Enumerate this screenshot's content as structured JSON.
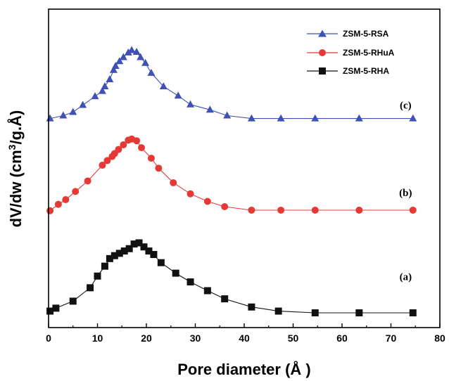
{
  "chart_data": {
    "type": "line",
    "xlabel": "Pore diameter (Å )",
    "ylabel": "dV/dw (cm³/g.Å)",
    "ylabel_parts": {
      "pre": "dV/dw (cm",
      "sup": "3",
      "post": "/g.Å)"
    },
    "xlim": [
      0,
      80
    ],
    "xticks": [
      0,
      10,
      20,
      30,
      40,
      50,
      60,
      70,
      80
    ],
    "yticks_shown": false,
    "grid": false,
    "legend_position": "top-right",
    "annotations": [
      {
        "id": "c",
        "text": "(c)",
        "x": 73,
        "y": 3.62
      },
      {
        "id": "b",
        "text": "(b)",
        "x": 73,
        "y": 2.12
      },
      {
        "id": "a",
        "text": "(a)",
        "x": 73,
        "y": 0.68
      }
    ],
    "series": [
      {
        "name": "ZSM-5-RSA",
        "color": "#3f51b5",
        "marker": "triangle",
        "x": [
          0.3,
          3,
          5,
          7,
          9.5,
          11,
          11.5,
          12.5,
          13.3,
          13.7,
          14.5,
          15.3,
          16.3,
          17,
          18,
          18.8,
          19.8,
          21,
          23.5,
          26.5,
          29,
          33,
          36.5,
          41.5,
          47.5,
          54.5,
          63.5,
          74.5
        ],
        "y": [
          3.45,
          3.5,
          3.56,
          3.68,
          3.83,
          3.92,
          4.0,
          4.12,
          4.28,
          4.35,
          4.43,
          4.5,
          4.58,
          4.62,
          4.59,
          4.5,
          4.4,
          4.23,
          4.0,
          3.84,
          3.69,
          3.6,
          3.5,
          3.45,
          3.45,
          3.45,
          3.45,
          3.45
        ]
      },
      {
        "name": "ZSM-5-RHuA",
        "color": "#e53935",
        "marker": "circle",
        "x": [
          0.3,
          2,
          3.5,
          5.5,
          8,
          11,
          12,
          13,
          13.5,
          14.3,
          15.3,
          16.3,
          17,
          18,
          19,
          21,
          22.5,
          25.5,
          29,
          32.5,
          36,
          41.5,
          47.5,
          54.5,
          63.5,
          74.5
        ],
        "y": [
          1.87,
          1.98,
          2.06,
          2.2,
          2.38,
          2.65,
          2.73,
          2.8,
          2.85,
          2.92,
          3.0,
          3.08,
          3.1,
          3.07,
          2.95,
          2.77,
          2.6,
          2.35,
          2.16,
          2.03,
          1.94,
          1.88,
          1.88,
          1.88,
          1.88,
          1.88
        ]
      },
      {
        "name": "ZSM-5-RHA",
        "color": "#111111",
        "marker": "square",
        "x": [
          0.3,
          1.5,
          5,
          8.5,
          10,
          11.5,
          12.5,
          13.5,
          14.5,
          15.5,
          16.5,
          17.5,
          18.5,
          19.5,
          20.5,
          21.5,
          23,
          26,
          29,
          32.5,
          36,
          41.5,
          47,
          54.5,
          63.5,
          74.5
        ],
        "y": [
          0.15,
          0.2,
          0.32,
          0.55,
          0.75,
          0.92,
          1.05,
          1.1,
          1.14,
          1.18,
          1.22,
          1.3,
          1.32,
          1.25,
          1.18,
          1.12,
          0.98,
          0.8,
          0.65,
          0.5,
          0.36,
          0.22,
          0.15,
          0.12,
          0.12,
          0.12
        ]
      }
    ]
  }
}
